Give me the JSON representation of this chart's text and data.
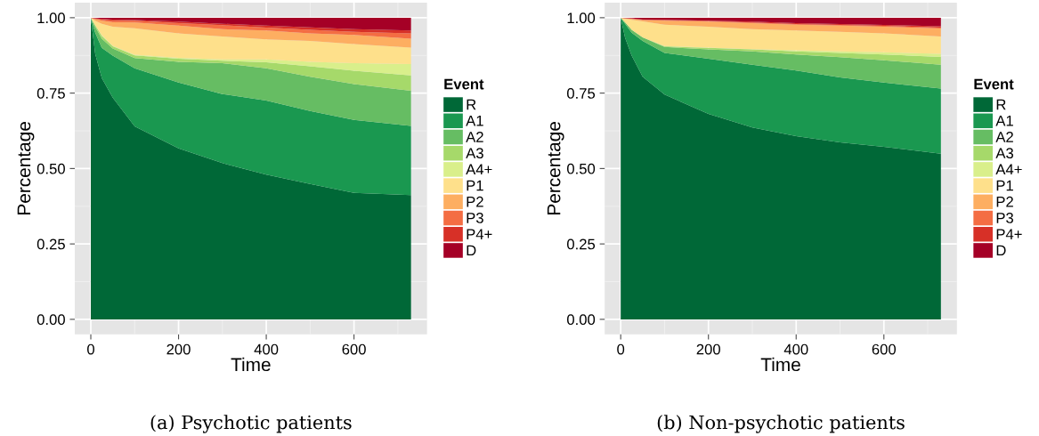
{
  "chart_data": [
    {
      "type": "area",
      "stacked": true,
      "xlabel": "Time",
      "ylabel": "Percentage",
      "legend_title": "Event",
      "legend": "right",
      "grid": true,
      "annotations": [
        "(a) Psychotic patients"
      ],
      "xlim": [
        -36.5,
        766.5
      ],
      "ylim": [
        -0.05,
        1.05
      ],
      "xticks": [
        0,
        200,
        400,
        600
      ],
      "yticks": [
        {
          "value": 0,
          "label": "0.00"
        },
        {
          "value": 0.25,
          "label": "0.25"
        },
        {
          "value": 0.5,
          "label": "0.50"
        },
        {
          "value": 0.75,
          "label": "0.75"
        },
        {
          "value": 1,
          "label": "1.00"
        }
      ],
      "x": [
        0,
        10,
        25,
        50,
        100,
        200,
        300,
        400,
        500,
        600,
        730
      ],
      "series": [
        {
          "name": "R",
          "color": "#006837",
          "values": [
            1.0,
            0.88,
            0.8,
            0.735,
            0.64,
            0.567,
            0.518,
            0.48,
            0.449,
            0.419,
            0.412
          ]
        },
        {
          "name": "A1",
          "color": "#1a9850",
          "values": [
            0,
            0.07,
            0.1,
            0.139,
            0.192,
            0.218,
            0.229,
            0.245,
            0.242,
            0.242,
            0.229
          ]
        },
        {
          "name": "A2",
          "color": "#66bd63",
          "values": [
            0,
            0.02,
            0.03,
            0.024,
            0.034,
            0.069,
            0.102,
            0.107,
            0.113,
            0.119,
            0.117
          ]
        },
        {
          "name": "A3",
          "color": "#a6d96a",
          "values": [
            0,
            0.005,
            0.01,
            0.007,
            0.009,
            0.01,
            0.008,
            0.02,
            0.035,
            0.044,
            0.051
          ]
        },
        {
          "name": "A4+",
          "color": "#d9ef8b",
          "values": [
            0,
            0.001,
            0.002,
            0.002,
            0.002,
            0.003,
            0.005,
            0.01,
            0.015,
            0.025,
            0.037
          ]
        },
        {
          "name": "P1",
          "color": "#fee08b",
          "values": [
            0,
            0.014,
            0.038,
            0.063,
            0.088,
            0.081,
            0.076,
            0.066,
            0.069,
            0.064,
            0.055
          ]
        },
        {
          "name": "P2",
          "color": "#fdae61",
          "values": [
            0,
            0.005,
            0.01,
            0.015,
            0.019,
            0.026,
            0.024,
            0.03,
            0.025,
            0.03,
            0.029
          ]
        },
        {
          "name": "P3",
          "color": "#f46d43",
          "values": [
            0,
            0.002,
            0.004,
            0.005,
            0.006,
            0.008,
            0.013,
            0.009,
            0.012,
            0.01,
            0.018
          ]
        },
        {
          "name": "P4+",
          "color": "#d73027",
          "values": [
            0,
            0.001,
            0.002,
            0.004,
            0.002,
            0.005,
            0.005,
            0.007,
            0.008,
            0.009,
            0.01
          ]
        },
        {
          "name": "D",
          "color": "#a50026",
          "values": [
            0,
            0.002,
            0.004,
            0.006,
            0.008,
            0.013,
            0.02,
            0.026,
            0.032,
            0.038,
            0.042
          ]
        }
      ]
    },
    {
      "type": "area",
      "stacked": true,
      "xlabel": "Time",
      "ylabel": "Percentage",
      "legend_title": "Event",
      "legend": "right",
      "grid": true,
      "annotations": [
        "(b) Non-psychotic patients"
      ],
      "xlim": [
        -36.5,
        766.5
      ],
      "ylim": [
        -0.05,
        1.05
      ],
      "xticks": [
        0,
        200,
        400,
        600
      ],
      "yticks": [
        {
          "value": 0,
          "label": "0.00"
        },
        {
          "value": 0.25,
          "label": "0.25"
        },
        {
          "value": 0.5,
          "label": "0.50"
        },
        {
          "value": 0.75,
          "label": "0.75"
        },
        {
          "value": 1,
          "label": "1.00"
        }
      ],
      "x": [
        0,
        10,
        25,
        50,
        100,
        200,
        300,
        400,
        500,
        600,
        730
      ],
      "series": [
        {
          "name": "R",
          "color": "#006837",
          "values": [
            1.0,
            0.933,
            0.874,
            0.804,
            0.745,
            0.681,
            0.636,
            0.607,
            0.587,
            0.572,
            0.549
          ]
        },
        {
          "name": "A1",
          "color": "#1a9850",
          "values": [
            0,
            0.047,
            0.076,
            0.119,
            0.138,
            0.183,
            0.208,
            0.218,
            0.215,
            0.213,
            0.216
          ]
        },
        {
          "name": "A2",
          "color": "#66bd63",
          "values": [
            0,
            0.005,
            0.01,
            0.012,
            0.02,
            0.031,
            0.044,
            0.053,
            0.067,
            0.074,
            0.079
          ]
        },
        {
          "name": "A3",
          "color": "#a6d96a",
          "values": [
            0,
            0,
            0,
            0,
            0.002,
            0.005,
            0.007,
            0.01,
            0.014,
            0.019,
            0.026
          ]
        },
        {
          "name": "A4+",
          "color": "#d9ef8b",
          "values": [
            0,
            0,
            0,
            0,
            0.001,
            0.001,
            0.001,
            0.004,
            0.005,
            0.007,
            0.01
          ]
        },
        {
          "name": "P1",
          "color": "#fee08b",
          "values": [
            0,
            0.012,
            0.033,
            0.053,
            0.071,
            0.069,
            0.066,
            0.066,
            0.065,
            0.063,
            0.058
          ]
        },
        {
          "name": "P2",
          "color": "#fdae61",
          "values": [
            0,
            0.001,
            0.003,
            0.004,
            0.013,
            0.017,
            0.02,
            0.019,
            0.021,
            0.022,
            0.026
          ]
        },
        {
          "name": "P3",
          "color": "#f46d43",
          "values": [
            0,
            0,
            0.001,
            0.001,
            0.002,
            0.002,
            0.002,
            0.002,
            0.002,
            0.003,
            0.003
          ]
        },
        {
          "name": "P4+",
          "color": "#d73027",
          "values": [
            0,
            0.001,
            0.001,
            0.001,
            0.001,
            0.001,
            0.003,
            0.003,
            0.003,
            0.003,
            0.005
          ]
        },
        {
          "name": "D",
          "color": "#a50026",
          "values": [
            0,
            0.001,
            0.002,
            0.006,
            0.007,
            0.01,
            0.013,
            0.018,
            0.021,
            0.024,
            0.028
          ]
        }
      ]
    }
  ]
}
